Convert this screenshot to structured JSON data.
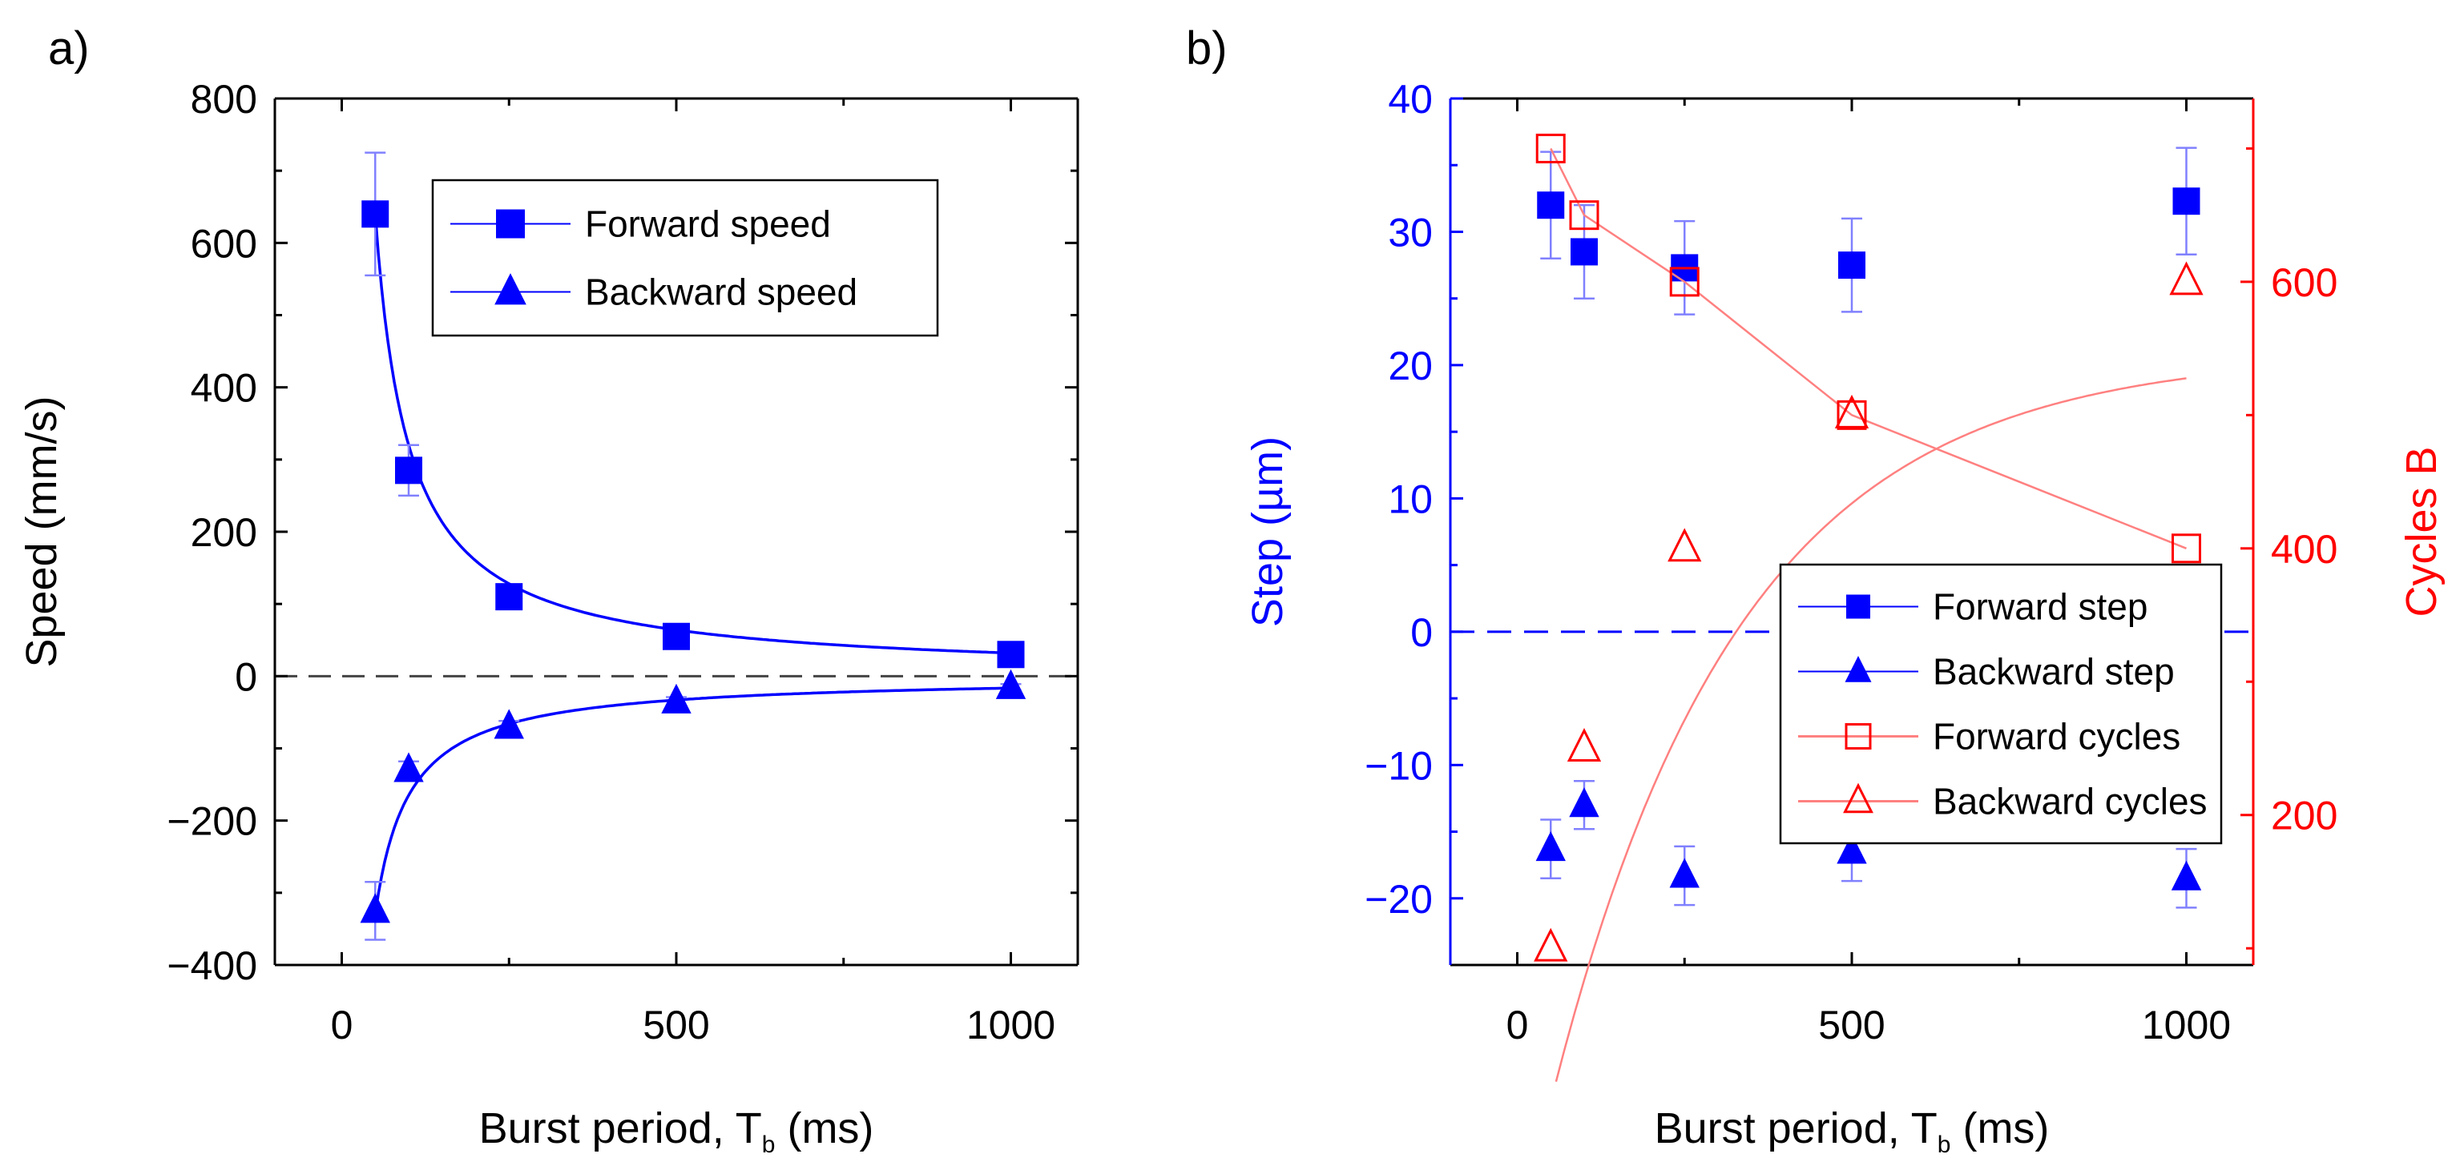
{
  "colors": {
    "blue": "#0000ff",
    "red": "#ff0000",
    "red_light": "#ff8080",
    "blue_error": "#8080ff",
    "red_error": "#ff9999",
    "axis": "#000000",
    "zero_line": "#444444"
  },
  "chart_data": [
    {
      "type": "scatter",
      "panel_label": "a)",
      "title": "",
      "xlabel": "Burst period, T",
      "xlabel_sub": "b",
      "xlabel_suffix": " (ms)",
      "ylabel": "Speed (mm/s)",
      "xlim": [
        -100,
        1100
      ],
      "ylim": [
        -400,
        800
      ],
      "xticks": [
        0,
        500,
        1000
      ],
      "xtick_labels": [
        "0",
        "500",
        "1000"
      ],
      "yticks": [
        -400,
        -200,
        0,
        200,
        400,
        600,
        800
      ],
      "ytick_labels": [
        "−400",
        "−200",
        "0",
        "200",
        "400",
        "600",
        "800"
      ],
      "zero_line": true,
      "legend": {
        "position": "top-right",
        "entries": [
          "Forward speed",
          "Backward speed"
        ]
      },
      "series": [
        {
          "name": "Forward speed",
          "marker": "square-filled",
          "color": "blue",
          "x": [
            50,
            100,
            250,
            500,
            1000
          ],
          "y": [
            640,
            285,
            110,
            55,
            30
          ],
          "err": [
            85,
            35,
            10,
            8,
            5
          ],
          "fit": {
            "form": "a/x",
            "a": 32000
          }
        },
        {
          "name": "Backward speed",
          "marker": "triangle-filled",
          "color": "blue",
          "x": [
            50,
            100,
            250,
            500,
            1000
          ],
          "y": [
            -325,
            -130,
            -70,
            -35,
            -15
          ],
          "err": [
            40,
            12,
            8,
            6,
            4
          ],
          "fit": {
            "form": "a/x",
            "a": -16500
          }
        }
      ]
    },
    {
      "type": "scatter",
      "panel_label": "b)",
      "title": "",
      "xlabel": "Burst period, T",
      "xlabel_sub": "b",
      "xlabel_suffix": " (ms)",
      "ylabel": "Step (µm)",
      "y2label": "Cycles B",
      "xlim": [
        -100,
        1100
      ],
      "ylim": [
        -25,
        40
      ],
      "y2lim": [
        87.5,
        737.5
      ],
      "xticks": [
        0,
        500,
        1000
      ],
      "xtick_labels": [
        "0",
        "500",
        "1000"
      ],
      "yticks": [
        -20,
        -10,
        0,
        10,
        20,
        30,
        40
      ],
      "ytick_labels": [
        "−20",
        "−10",
        "0",
        "10",
        "20",
        "30",
        "40"
      ],
      "y2ticks": [
        200,
        400,
        600
      ],
      "y2tick_labels": [
        "200",
        "400",
        "600"
      ],
      "zero_line": true,
      "legend": {
        "position": "bottom-right",
        "entries": [
          "Forward step",
          "Backward step",
          "Forward cycles",
          "Backward cycles"
        ]
      },
      "series": [
        {
          "name": "Forward step",
          "axis": "left",
          "marker": "square-filled",
          "color": "blue",
          "x": [
            50,
            100,
            250,
            500,
            1000
          ],
          "y": [
            32,
            28.5,
            27.3,
            27.5,
            32.3
          ],
          "err": [
            4,
            3.5,
            3.5,
            3.5,
            4
          ]
        },
        {
          "name": "Backward step",
          "axis": "left",
          "marker": "triangle-filled",
          "color": "blue",
          "x": [
            50,
            100,
            250,
            500,
            1000
          ],
          "y": [
            -16.3,
            -13,
            -18.3,
            -16.5,
            -18.5
          ],
          "err": [
            2.2,
            1.8,
            2.2,
            2.2,
            2.2
          ]
        },
        {
          "name": "Forward cycles",
          "axis": "right",
          "marker": "square-open",
          "color": "red",
          "x": [
            50,
            100,
            250,
            500,
            1000
          ],
          "y": [
            700,
            650,
            600,
            500,
            400
          ],
          "connect": true
        },
        {
          "name": "Backward cycles",
          "axis": "right",
          "marker": "triangle-open",
          "color": "red",
          "x": [
            50,
            100,
            250,
            500,
            1000
          ],
          "y": [
            100,
            250,
            400,
            500,
            600
          ],
          "fit": {
            "form": "a*(1-exp(-x/t))+c",
            "a": 546.5,
            "t": 280,
            "c": 0,
            "x0": 58
          }
        }
      ]
    }
  ]
}
